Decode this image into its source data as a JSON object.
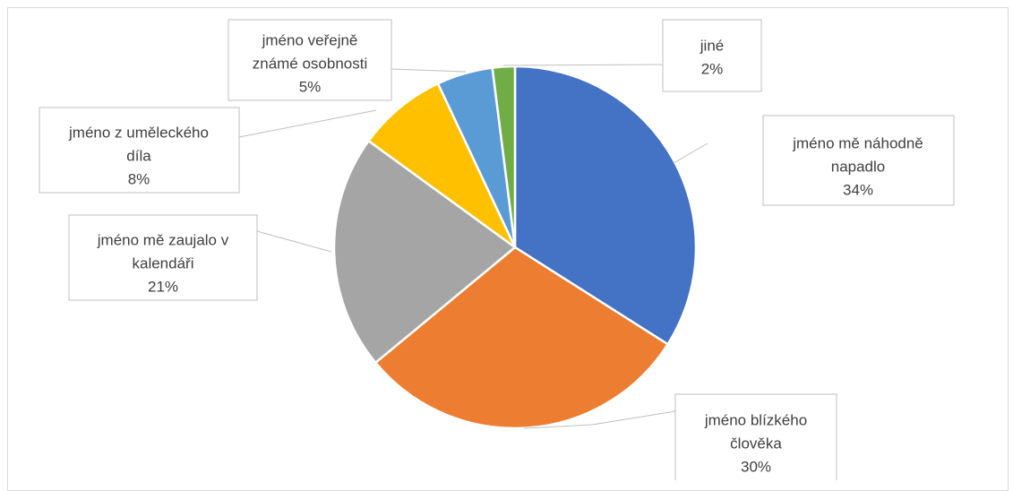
{
  "chart_data": {
    "type": "pie",
    "title": "",
    "legend": "none",
    "slices": [
      {
        "label_lines": [
          "jméno mě náhodně",
          "napadlo"
        ],
        "value": 34,
        "value_label": "34%",
        "color": "#4472C4"
      },
      {
        "label_lines": [
          "jméno blízkého",
          "člověka"
        ],
        "value": 30,
        "value_label": "30%",
        "color": "#ED7D31"
      },
      {
        "label_lines": [
          "jméno mě zaujalo v",
          "kalendáři"
        ],
        "value": 21,
        "value_label": "21%",
        "color": "#A5A5A5"
      },
      {
        "label_lines": [
          "jméno z uměleckého",
          "díla"
        ],
        "value": 8,
        "value_label": "8%",
        "color": "#FFC000"
      },
      {
        "label_lines": [
          "jméno veřejně",
          "známé osobnosti"
        ],
        "value": 5,
        "value_label": "5%",
        "color": "#5B9BD5"
      },
      {
        "label_lines": [
          "jiné"
        ],
        "value": 2,
        "value_label": "2%",
        "color": "#70AD47"
      }
    ]
  }
}
